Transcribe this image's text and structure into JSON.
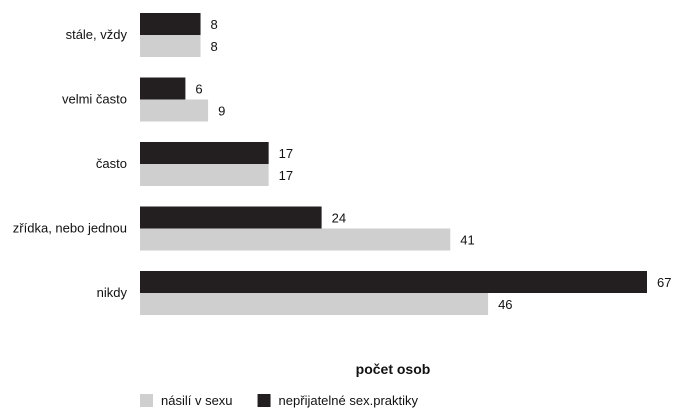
{
  "chart_data": {
    "type": "bar",
    "orientation": "horizontal",
    "categories": [
      "stále, vždy",
      "velmi často",
      "často",
      "zřídka, nebo jednou",
      "nikdy"
    ],
    "series": [
      {
        "name": "nepřijatelné sex.praktiky",
        "color": "#231f20",
        "values": [
          8,
          6,
          17,
          24,
          67
        ]
      },
      {
        "name": "násilí v sexu",
        "color": "#cfcfcf",
        "values": [
          8,
          9,
          17,
          41,
          46
        ]
      }
    ],
    "xlabel": "počet osob",
    "ylabel": "",
    "xlim": [
      0,
      67
    ],
    "grid": false,
    "legend_placement": "bottom-left",
    "legend_order": [
      1,
      0
    ]
  }
}
